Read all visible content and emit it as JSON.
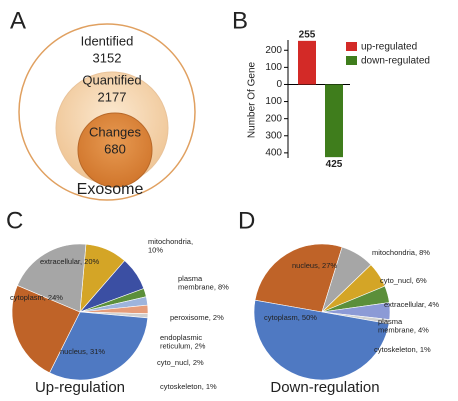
{
  "panel_labels": [
    "A",
    "B",
    "C",
    "D"
  ],
  "diagram": {
    "sets": [
      {
        "label": "Identified",
        "count": "3152"
      },
      {
        "label": "Quantified",
        "count": "2177"
      },
      {
        "label": "Changes",
        "count": "680"
      }
    ],
    "caption": "Exosome"
  },
  "chart_data": [
    {
      "type": "bar",
      "y_label": "Number Of Gene",
      "series": [
        {
          "name": "up-regulated",
          "color": "#d32a27",
          "values": [
            255
          ],
          "value_labels": [
            "255"
          ]
        },
        {
          "name": "down-regulated",
          "color": "#3f7d1c",
          "values": [
            -425
          ],
          "value_labels": [
            "425"
          ]
        }
      ],
      "ylim": [
        -430,
        260
      ],
      "yticks": [
        200,
        100,
        0,
        {
          "value": -100,
          "label": "100"
        },
        {
          "value": -200,
          "label": "200"
        },
        {
          "value": -300,
          "label": "300"
        },
        {
          "value": -400,
          "label": "400"
        }
      ],
      "legend": "upper right"
    },
    {
      "type": "pie",
      "title": "Up-regulation",
      "values": [
        10,
        8,
        2,
        2,
        2,
        1,
        31,
        24,
        20
      ],
      "labels": [
        "mitochondria,\n10%",
        "plasma\nmembrane, 8%",
        "peroxisome, 2%",
        "endoplasmic\nreticulum, 2%",
        "cyto_nucl, 2%",
        "cytoskeleton, 1%",
        "nucleus, 31%",
        "cytoplasm, 24%",
        "extracellular, 20%"
      ],
      "colors": [
        "#d4a526",
        "#3b4fa3",
        "#5b8f3a",
        "#9db4dc",
        "#e59c7a",
        "#cfcfcf",
        "#4f79c2",
        "#bf6328",
        "#a6a6a6"
      ]
    },
    {
      "type": "pie",
      "title": "Down-regulation",
      "values": [
        27,
        8,
        6,
        4,
        4,
        1,
        50
      ],
      "labels": [
        "nucleus, 27%",
        "mitochondria, 8%",
        "cyto_nucl, 6%",
        "extracellular, 4%",
        "plasma\nmembrane, 4%",
        "cytoskeleton, 1%",
        "cytoplasm, 50%"
      ],
      "colors": [
        "#bf6328",
        "#a6a6a6",
        "#d4a526",
        "#5b8f3a",
        "#8c9ad6",
        "#cfcfcf",
        "#4f79c2"
      ]
    }
  ]
}
